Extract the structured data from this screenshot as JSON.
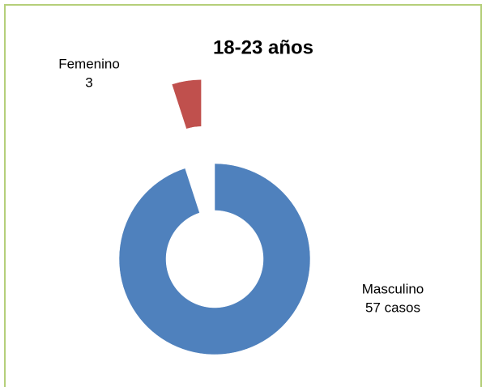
{
  "chart_data": {
    "type": "donut",
    "title": "18-23 años",
    "categories": [
      "Masculino",
      "Femenino"
    ],
    "values": [
      57,
      3
    ],
    "value_labels": [
      "57 casos",
      "3"
    ],
    "colors": [
      "#4f81bd",
      "#c0504d"
    ]
  }
}
